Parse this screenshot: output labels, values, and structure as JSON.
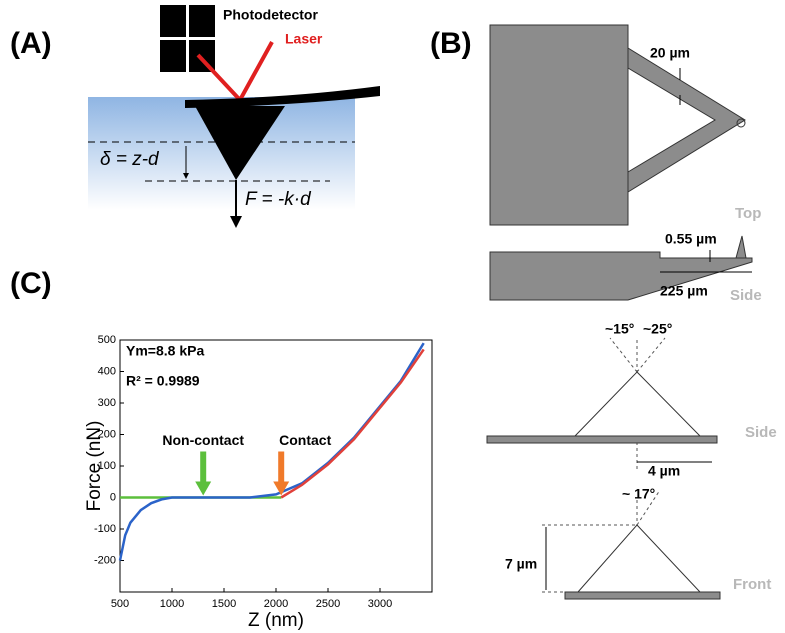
{
  "panel_a": {
    "label": "(A)",
    "photodetector": "Photodetector",
    "laser": "Laser",
    "indentation": "δ = z-d",
    "force": "F = -k·d"
  },
  "panel_b": {
    "label": "(B)",
    "arm_width": "20 µm",
    "thickness": "0.55 µm",
    "length": "225 µm",
    "top": "Top",
    "side": "Side",
    "angle_left": "~15°",
    "angle_right": "~25°",
    "side_view": "Side",
    "base_width": "4 µm",
    "angle_front": "~ 17°",
    "height": "7 µm",
    "front_view": "Front"
  },
  "panel_c": {
    "label": "(C)"
  },
  "chart_data": {
    "type": "line",
    "x_label": "Z (nm)",
    "y_label": "Force (nN)",
    "annotations": [
      "Ym=8.8 kPa",
      "R² = 0.9989"
    ],
    "arrows": [
      {
        "label": "Non-contact",
        "x": 1300,
        "color": "#5cbf3c"
      },
      {
        "label": "Contact",
        "x": 2050,
        "color": "#f07a2a"
      }
    ],
    "series": [
      {
        "color": "#5cbf3c",
        "x": [
          500,
          2050
        ],
        "values": [
          0,
          0
        ]
      },
      {
        "color": "#2b63c9",
        "x": [
          500,
          550,
          600,
          700,
          800,
          900,
          1000,
          1200,
          1500,
          1750,
          2000,
          2250,
          2500,
          2750,
          3000,
          3200,
          3420
        ],
        "values": [
          -200,
          -120,
          -80,
          -40,
          -18,
          -6,
          0,
          0,
          0,
          0,
          10,
          45,
          110,
          190,
          290,
          370,
          490
        ]
      },
      {
        "color": "#e0403a",
        "x": [
          2050,
          2250,
          2500,
          2750,
          3000,
          3200,
          3420
        ],
        "values": [
          0,
          40,
          105,
          185,
          285,
          365,
          470
        ]
      }
    ],
    "xlim": [
      500,
      3500
    ],
    "ylim": [
      -300,
      500
    ],
    "xticks": [
      500,
      1000,
      1500,
      2000,
      2500,
      3000
    ],
    "yticks": [
      -200,
      -100,
      0,
      100,
      200,
      300,
      400,
      500
    ]
  }
}
